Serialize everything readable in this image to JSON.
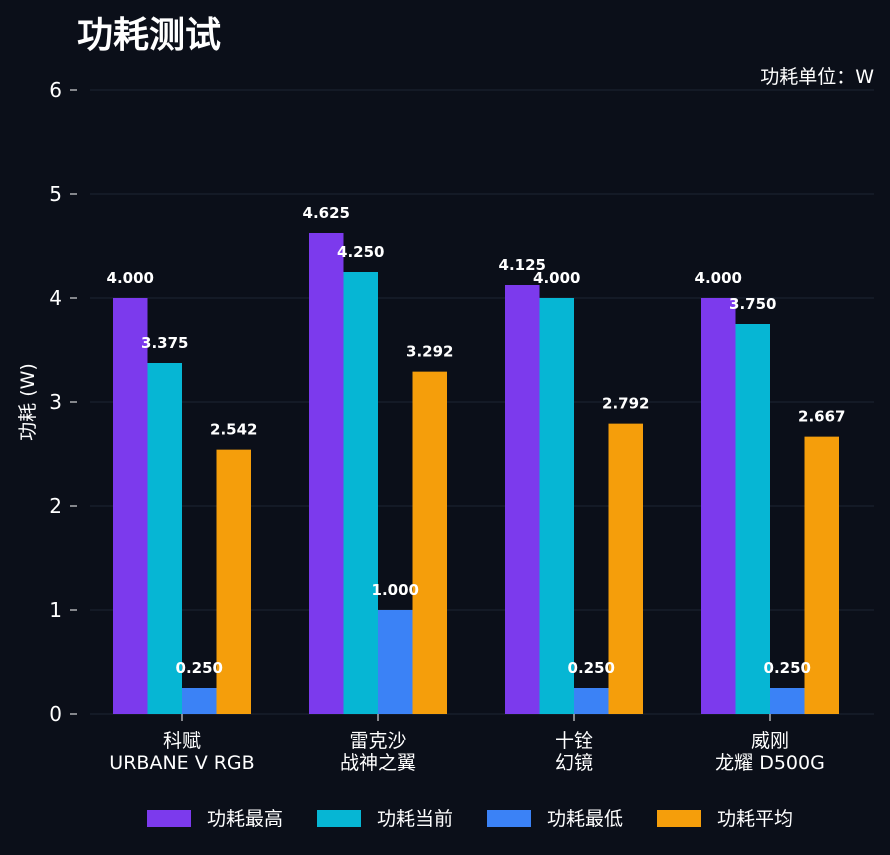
{
  "chart_data": {
    "type": "bar",
    "title": "功耗测试",
    "unit_note": "功耗单位：W",
    "ylabel": "功耗 (W)",
    "xlabel": "",
    "ylim": [
      0,
      6
    ],
    "yticks": [
      0,
      1,
      2,
      3,
      4,
      5,
      6
    ],
    "grid": true,
    "legend": "bottom",
    "categories": [
      [
        "科赋",
        "URBANE V RGB"
      ],
      [
        "雷克沙",
        "战神之翼"
      ],
      [
        "十铨",
        "幻镜"
      ],
      [
        "威刚",
        "龙耀 D500G"
      ]
    ],
    "series": [
      {
        "name": "功耗最高",
        "color": "#7c3aed",
        "values": [
          4.0,
          4.625,
          4.125,
          4.0
        ],
        "labels": [
          "4.000",
          "4.625",
          "4.125",
          "4.000"
        ]
      },
      {
        "name": "功耗当前",
        "color": "#06b6d4",
        "values": [
          3.375,
          4.25,
          4.0,
          3.75
        ],
        "labels": [
          "3.375",
          "4.250",
          "4.000",
          "3.750"
        ]
      },
      {
        "name": "功耗最低",
        "color": "#3b82f6",
        "values": [
          0.25,
          1.0,
          0.25,
          0.25
        ],
        "labels": [
          "0.250",
          "1.000",
          "0.250",
          "0.250"
        ]
      },
      {
        "name": "功耗平均",
        "color": "#f59e0b",
        "values": [
          2.542,
          3.292,
          2.792,
          2.667
        ],
        "labels": [
          "2.542",
          "3.292",
          "2.792",
          "2.667"
        ]
      }
    ]
  }
}
